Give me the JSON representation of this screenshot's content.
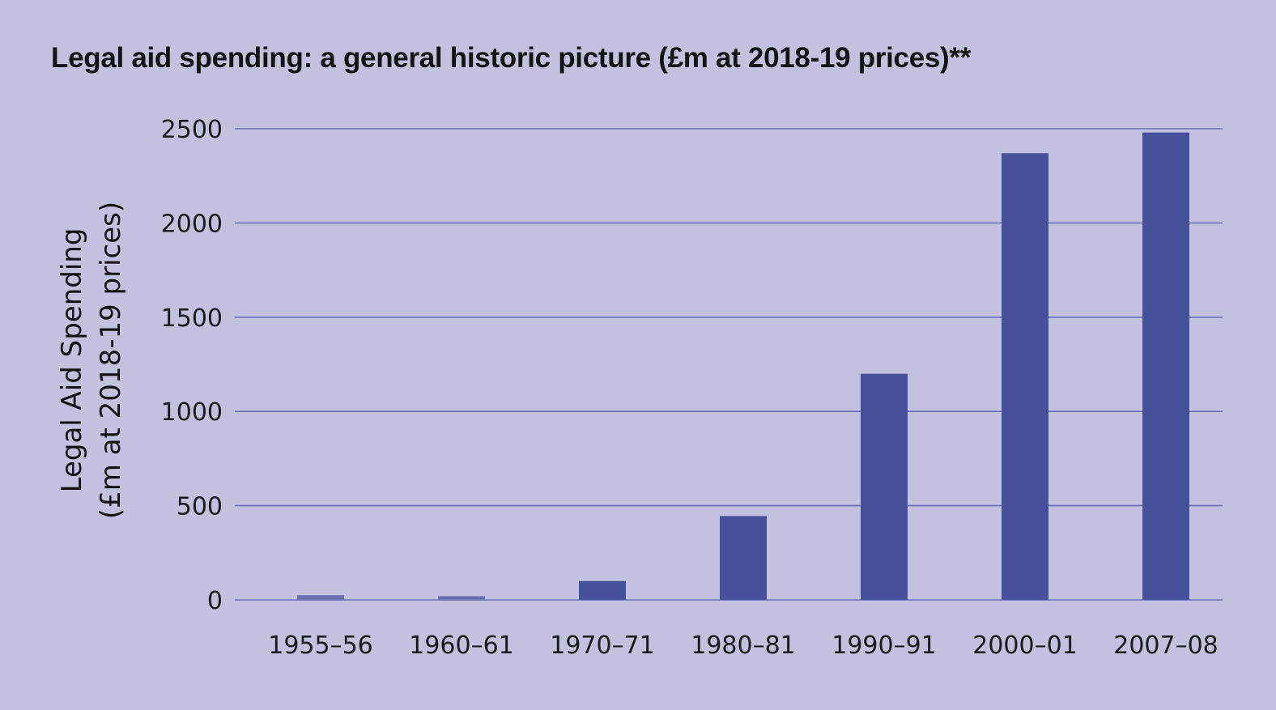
{
  "chart_data": {
    "type": "bar",
    "title": "Legal aid spending: a general historic picture (£m at 2018-19 prices)**",
    "xlabel": "",
    "ylabel": [
      "Legal Aid Spending",
      "(£m at 2018-19 prices)"
    ],
    "categories": [
      "1955–56",
      "1960–61",
      "1970–71",
      "1980–81",
      "1990–91",
      "2000–01",
      "2007–08"
    ],
    "values": [
      25,
      20,
      100,
      445,
      1200,
      2370,
      2480
    ],
    "ylim": [
      0,
      2500
    ],
    "yticks": [
      "0",
      "500",
      "1000",
      "1500",
      "2000",
      "2500"
    ],
    "grid": true,
    "legend": "none",
    "colors": {
      "bar": "#47519b",
      "bar_light": "#6b70b3",
      "grid": "#6e6eb6",
      "background": "#c2c1e0"
    }
  }
}
